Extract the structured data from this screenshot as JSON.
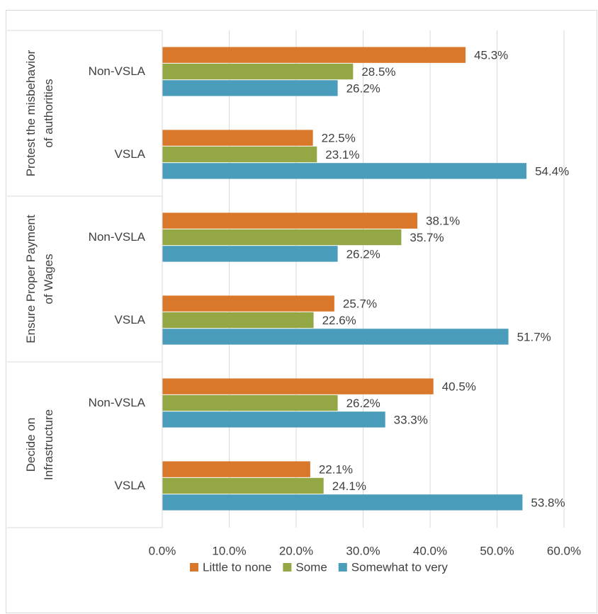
{
  "chart_data": {
    "type": "bar",
    "orientation": "horizontal",
    "groups": [
      {
        "label_lines": [
          "Protest the misbehavior",
          "of authorities"
        ],
        "categories": [
          "Non-VSLA",
          "VSLA"
        ]
      },
      {
        "label_lines": [
          "Ensure Proper Payment",
          "of Wages"
        ],
        "categories": [
          "Non-VSLA",
          "VSLA"
        ]
      },
      {
        "label_lines": [
          "Decide on",
          "Infrastructure"
        ],
        "categories": [
          "Non-VSLA",
          "VSLA"
        ]
      }
    ],
    "series": [
      {
        "name": "Little to none",
        "color": "#d9782a",
        "values": [
          45.3,
          22.5,
          38.1,
          25.7,
          40.5,
          22.1
        ],
        "value_labels": [
          "45.3%",
          "22.5%",
          "38.1%",
          "25.7%",
          "40.5%",
          "22.1%"
        ]
      },
      {
        "name": "Some",
        "color": "#93a744",
        "values": [
          28.5,
          23.1,
          35.7,
          22.6,
          26.2,
          24.1
        ],
        "value_labels": [
          "28.5%",
          "23.1%",
          "35.7%",
          "22.6%",
          "26.2%",
          "24.1%"
        ]
      },
      {
        "name": "Somewhat to very",
        "color": "#4a9cbb",
        "values": [
          26.2,
          54.4,
          26.2,
          51.7,
          33.3,
          53.8
        ],
        "value_labels": [
          "26.2%",
          "54.4%",
          "26.2%",
          "51.7%",
          "33.3%",
          "53.8%"
        ]
      }
    ],
    "xlim": [
      0,
      60
    ],
    "xticks": [
      {
        "value": 0,
        "label": "0.0%"
      },
      {
        "value": 10,
        "label": "10.0%"
      },
      {
        "value": 20,
        "label": "20.0%"
      },
      {
        "value": 30,
        "label": "30.0%"
      },
      {
        "value": 40,
        "label": "40.0%"
      },
      {
        "value": 50,
        "label": "50.0%"
      },
      {
        "value": 60,
        "label": "60.0%"
      }
    ],
    "grid": true,
    "legend": "bottom"
  }
}
